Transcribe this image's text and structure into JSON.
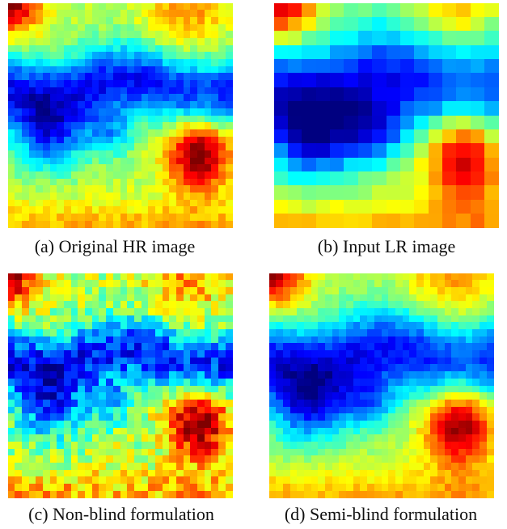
{
  "panels": [
    {
      "caption": "(a) Original HR image",
      "grid": 32,
      "noise": 0.1,
      "blur": 1.0
    },
    {
      "caption": "(b) Input LR image",
      "grid": 16,
      "noise": 0.06,
      "blur": 1.6
    },
    {
      "caption": "(c) Non-blind formulation",
      "grid": 32,
      "noise": 0.22,
      "blur": 0.9
    },
    {
      "caption": "(d) Semi-blind formulation",
      "grid": 32,
      "noise": 0.08,
      "blur": 1.2
    }
  ]
}
